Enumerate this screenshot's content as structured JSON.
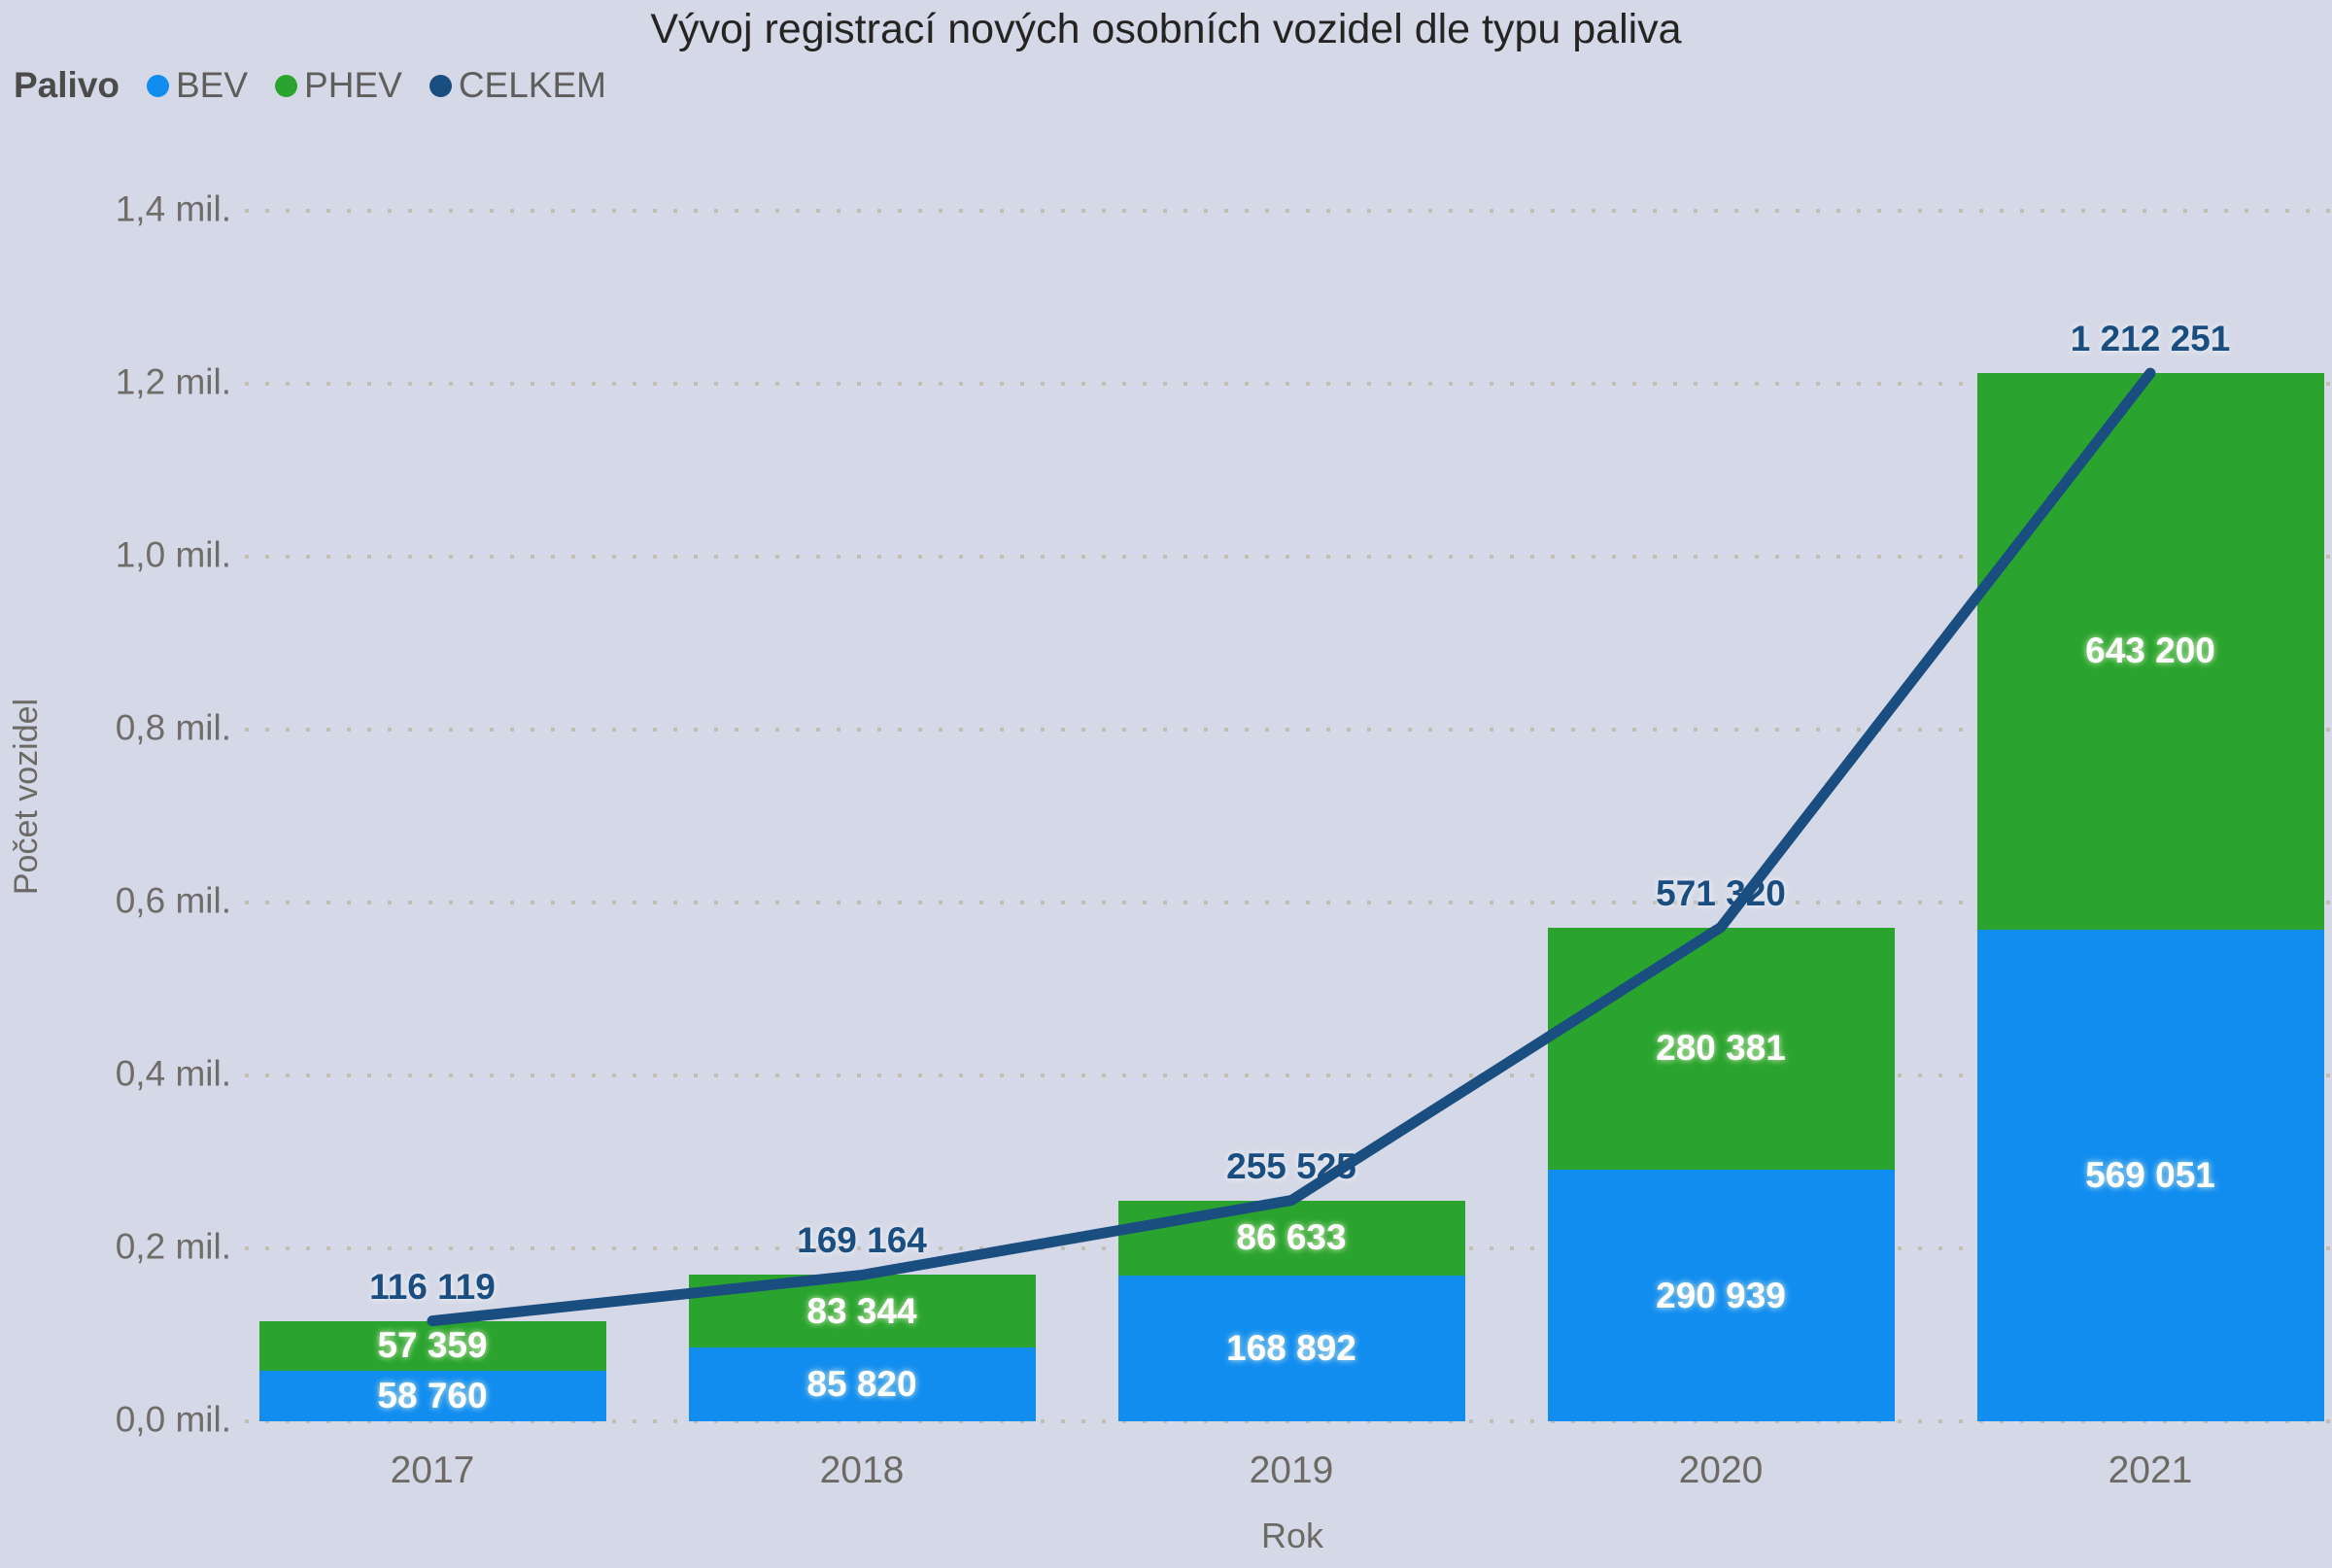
{
  "title": "Vývoj registrací nových osobních vozidel dle typu paliva",
  "legend": {
    "label": "Palivo",
    "items": [
      {
        "name": "BEV",
        "color": "#118df0"
      },
      {
        "name": "PHEV",
        "color": "#2aa42e"
      },
      {
        "name": "CELKEM",
        "color": "#1a4d80"
      }
    ]
  },
  "axes": {
    "y_title": "Počet vozidel",
    "x_title": "Rok",
    "y_ticks": [
      {
        "label": "1,4 mil.",
        "value": 1400000
      },
      {
        "label": "1,2 mil.",
        "value": 1200000
      },
      {
        "label": "1,0 mil.",
        "value": 1000000
      },
      {
        "label": "0,8 mil.",
        "value": 800000
      },
      {
        "label": "0,6 mil.",
        "value": 600000
      },
      {
        "label": "0,4 mil.",
        "value": 400000
      },
      {
        "label": "0,2 mil.",
        "value": 200000
      },
      {
        "label": "0,0 mil.",
        "value": 0
      }
    ]
  },
  "chart_data": {
    "type": "bar",
    "stacked": true,
    "title": "Vývoj registrací nových osobních vozidel dle typu paliva",
    "xlabel": "Rok",
    "ylabel": "Počet vozidel",
    "ylim": [
      0,
      1400000
    ],
    "grid": "horizontal-dotted",
    "legend_position": "top-left",
    "categories": [
      "2017",
      "2018",
      "2019",
      "2020",
      "2021"
    ],
    "series": [
      {
        "name": "BEV",
        "type": "bar",
        "color": "#118df0",
        "values": [
          58760,
          85820,
          168892,
          290939,
          569051
        ],
        "labels": [
          "58 760",
          "85 820",
          "168 892",
          "290 939",
          "569 051"
        ]
      },
      {
        "name": "PHEV",
        "type": "bar",
        "color": "#2aa42e",
        "values": [
          57359,
          83344,
          86633,
          280381,
          643200
        ],
        "labels": [
          "57 359",
          "83 344",
          "86 633",
          "280 381",
          "643 200"
        ]
      },
      {
        "name": "CELKEM",
        "type": "line",
        "color": "#1a4d80",
        "values": [
          116119,
          169164,
          255525,
          571320,
          1212251
        ],
        "labels": [
          "116 119",
          "169 164",
          "255 525",
          "571 320",
          "1 212 251"
        ]
      }
    ]
  },
  "colors": {
    "background": "#d5d9e7",
    "grid_dots": "#c2beb1",
    "axis_text": "#6d6a66",
    "title_text": "#262423",
    "total_label": "#1a4d80",
    "segment_label": "#ffffff"
  }
}
